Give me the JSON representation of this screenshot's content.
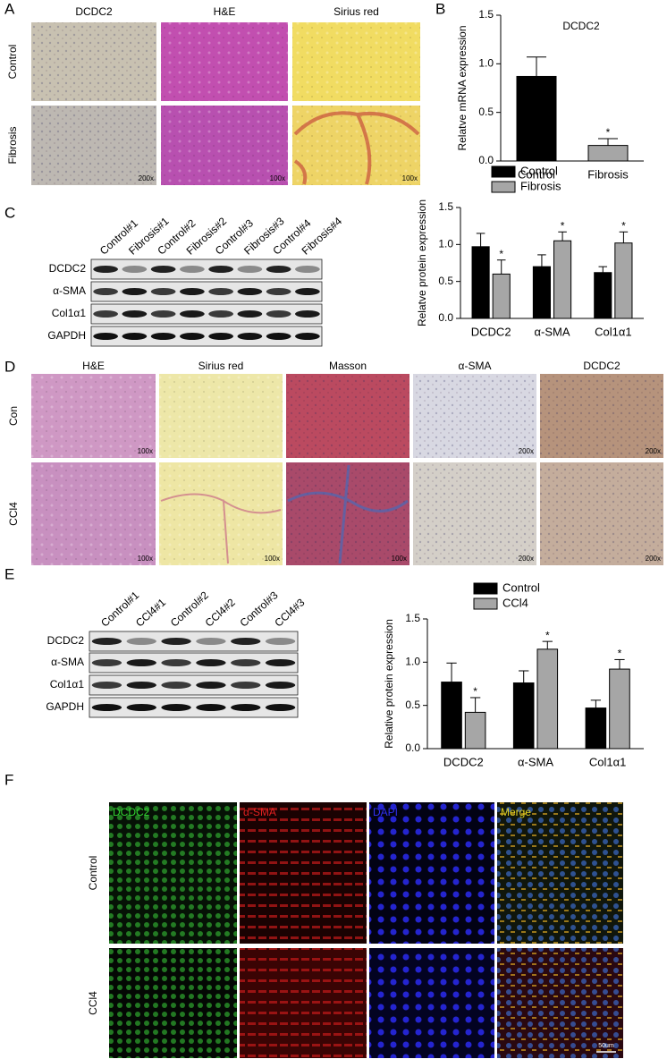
{
  "panel_a": {
    "label": "A",
    "columns": [
      "DCDC2",
      "H&E",
      "Sirius red"
    ],
    "rows": [
      "Control",
      "Fibrosis"
    ],
    "magnifications": [
      [
        null,
        null,
        null
      ],
      [
        "200x",
        "100x",
        "100x"
      ]
    ]
  },
  "blot_c": {
    "label": "C",
    "lanes": [
      "Control#1",
      "Fibrosis#1",
      "Control#2",
      "Fibrosis#2",
      "Control#3",
      "Fibrosis#3",
      "Control#4",
      "Fibrosis#4"
    ],
    "proteins": [
      "DCDC2",
      "α-SMA",
      "Col1α1",
      "GAPDH"
    ]
  },
  "panel_d": {
    "label": "D",
    "columns": [
      "H&E",
      "Sirius red",
      "Masson",
      "α-SMA",
      "DCDC2"
    ],
    "rows": [
      "Con",
      "CCl4"
    ],
    "magnifications": [
      [
        "100x",
        null,
        null,
        "200x",
        "200x"
      ],
      [
        "100x",
        "100x",
        "100x",
        "200x",
        "200x"
      ]
    ]
  },
  "blot_e": {
    "label": "E",
    "lanes": [
      "Control#1",
      "CCl4#1",
      "Control#2",
      "CCl4#2",
      "Control#3",
      "CCl4#3"
    ],
    "proteins": [
      "DCDC2",
      "α-SMA",
      "Col1α1",
      "GAPDH"
    ]
  },
  "panel_f": {
    "label": "F",
    "columns": [
      "DCDC2",
      "α-SMA",
      "DAPI",
      "Merge"
    ],
    "rows": [
      "Control",
      "CCl4"
    ],
    "scale_bar": "50um"
  },
  "chart_data": [
    {
      "type": "bar",
      "panel": "B",
      "title": "DCDC2",
      "y_label": "Relatve mRNA expression",
      "categories": [
        "Control",
        "Fibrosis"
      ],
      "values": [
        0.87,
        0.16
      ],
      "errors": [
        0.2,
        0.07
      ],
      "significance": [
        null,
        "*"
      ],
      "colors": [
        "#000000",
        "#a6a6a6"
      ],
      "ylim": [
        0,
        1.5
      ],
      "yticks": [
        {
          "value": 0,
          "label": "0.0"
        },
        {
          "value": 0.5,
          "label": "0.5"
        },
        {
          "value": 1,
          "label": "1.0"
        },
        {
          "value": 1.5,
          "label": "1.5"
        }
      ]
    },
    {
      "type": "grouped_bar",
      "y_label": "Relatve protein expression",
      "categories": [
        "DCDC2",
        "α-SMA",
        "Col1α1"
      ],
      "series": [
        {
          "name": "Control",
          "color": "#000000",
          "values": [
            0.97,
            0.7,
            0.62
          ],
          "errors": [
            0.18,
            0.16,
            0.08
          ]
        },
        {
          "name": "Fibrosis",
          "color": "#a6a6a6",
          "values": [
            0.6,
            1.05,
            1.02
          ],
          "errors": [
            0.19,
            0.12,
            0.15
          ],
          "significance": [
            "*",
            "*",
            "*"
          ]
        }
      ],
      "ylim": [
        0,
        1.5
      ],
      "yticks": [
        {
          "value": 0,
          "label": "0.0"
        },
        {
          "value": 0.5,
          "label": "0.5"
        },
        {
          "value": 1,
          "label": "1.0"
        },
        {
          "value": 1.5,
          "label": "1.5"
        }
      ]
    },
    {
      "type": "grouped_bar",
      "y_label": "Relative protein expression",
      "categories": [
        "DCDC2",
        "α-SMA",
        "Col1α1"
      ],
      "series": [
        {
          "name": "Control",
          "color": "#000000",
          "values": [
            0.77,
            0.76,
            0.47
          ],
          "errors": [
            0.22,
            0.14,
            0.09
          ]
        },
        {
          "name": "CCl4",
          "color": "#a6a6a6",
          "values": [
            0.42,
            1.15,
            0.92
          ],
          "errors": [
            0.17,
            0.09,
            0.11
          ],
          "significance": [
            "*",
            "*",
            "*"
          ]
        }
      ],
      "ylim": [
        0,
        1.5
      ],
      "yticks": [
        {
          "value": 0,
          "label": "0.0"
        },
        {
          "value": 0.5,
          "label": "0.5"
        },
        {
          "value": 1,
          "label": "1.0"
        },
        {
          "value": 1.5,
          "label": "1.5"
        }
      ]
    }
  ]
}
